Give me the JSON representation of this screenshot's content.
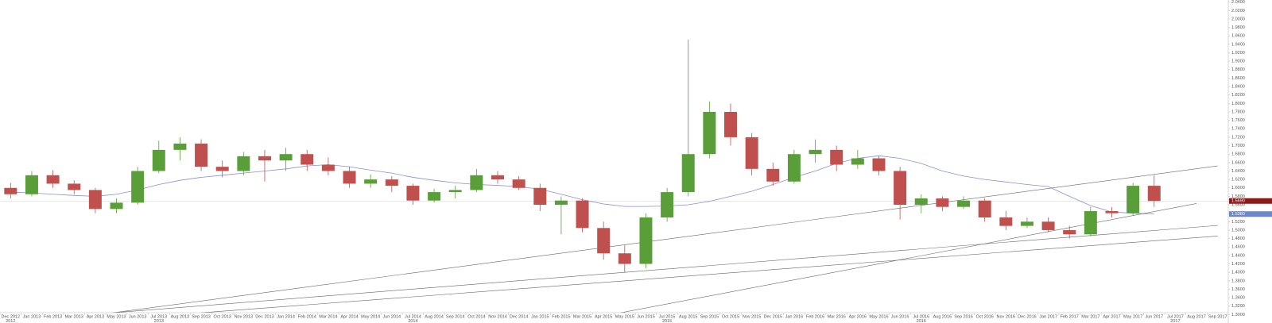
{
  "chart_data": {
    "type": "candlestick",
    "categories": [
      "Dec 2012",
      "Jan 2013",
      "Feb 2013",
      "Mar 2013",
      "Apr 2013",
      "May 2013",
      "Jun 2013",
      "Jul 2013",
      "Aug 2013",
      "Sep 2013",
      "Oct 2013",
      "Nov 2013",
      "Dec 2013",
      "Jan 2014",
      "Feb 2014",
      "Mar 2014",
      "Apr 2014",
      "May 2014",
      "Jun 2014",
      "Jul 2014",
      "Aug 2014",
      "Sep 2014",
      "Oct 2014",
      "Nov 2014",
      "Dec 2014",
      "Jan 2015",
      "Feb 2015",
      "Mar 2015",
      "Apr 2015",
      "May 2015",
      "Jun 2015",
      "Jul 2015",
      "Aug 2015",
      "Sep 2015",
      "Oct 2015",
      "Nov 2015",
      "Dec 2015",
      "Jan 2016",
      "Feb 2016",
      "Mar 2016",
      "Apr 2016",
      "May 2016",
      "Jun 2016",
      "Jul 2016",
      "Aug 2016",
      "Sep 2016",
      "Oct 2016",
      "Nov 2016",
      "Dec 2016",
      "Jan 2017",
      "Feb 2017",
      "Mar 2017",
      "Apr 2017",
      "May 2017",
      "Jun 2017",
      "Jul 2017",
      "Aug 2017",
      "Sep 2017"
    ],
    "year_labels": [
      {
        "at": "Dec 2012",
        "label": "2012"
      },
      {
        "at": "Jul 2013",
        "label": "2013"
      },
      {
        "at": "Jul 2014",
        "label": "2014"
      },
      {
        "at": "Jul 2015",
        "label": "2015"
      },
      {
        "at": "Jul 2016",
        "label": "2016"
      },
      {
        "at": "Jul 2017",
        "label": "2017"
      }
    ],
    "ohlc": [
      [
        1.6,
        1.612,
        1.575,
        1.585
      ],
      [
        1.585,
        1.64,
        1.58,
        1.63
      ],
      [
        1.63,
        1.642,
        1.6,
        1.61
      ],
      [
        1.61,
        1.618,
        1.585,
        1.595
      ],
      [
        1.595,
        1.6,
        1.54,
        1.55
      ],
      [
        1.55,
        1.575,
        1.54,
        1.565
      ],
      [
        1.565,
        1.65,
        1.56,
        1.64
      ],
      [
        1.64,
        1.712,
        1.635,
        1.69
      ],
      [
        1.69,
        1.72,
        1.665,
        1.705
      ],
      [
        1.705,
        1.715,
        1.64,
        1.65
      ],
      [
        1.65,
        1.665,
        1.625,
        1.64
      ],
      [
        1.64,
        1.685,
        1.63,
        1.675
      ],
      [
        1.675,
        1.69,
        1.615,
        1.665
      ],
      [
        1.665,
        1.695,
        1.64,
        1.68
      ],
      [
        1.68,
        1.69,
        1.64,
        1.655
      ],
      [
        1.655,
        1.672,
        1.63,
        1.64
      ],
      [
        1.64,
        1.65,
        1.6,
        1.61
      ],
      [
        1.61,
        1.632,
        1.6,
        1.62
      ],
      [
        1.62,
        1.628,
        1.59,
        1.605
      ],
      [
        1.605,
        1.61,
        1.56,
        1.57
      ],
      [
        1.57,
        1.598,
        1.565,
        1.59
      ],
      [
        1.59,
        1.605,
        1.575,
        1.595
      ],
      [
        1.595,
        1.645,
        1.59,
        1.63
      ],
      [
        1.63,
        1.64,
        1.61,
        1.62
      ],
      [
        1.62,
        1.628,
        1.595,
        1.6
      ],
      [
        1.6,
        1.61,
        1.545,
        1.56
      ],
      [
        1.56,
        1.58,
        1.49,
        1.57
      ],
      [
        1.57,
        1.575,
        1.495,
        1.505
      ],
      [
        1.505,
        1.52,
        1.43,
        1.445
      ],
      [
        1.445,
        1.465,
        1.4,
        1.42
      ],
      [
        1.42,
        1.54,
        1.41,
        1.53
      ],
      [
        1.53,
        1.6,
        1.52,
        1.59
      ],
      [
        1.59,
        1.951,
        1.58,
        1.68
      ],
      [
        1.68,
        1.805,
        1.67,
        1.78
      ],
      [
        1.78,
        1.8,
        1.7,
        1.72
      ],
      [
        1.72,
        1.73,
        1.63,
        1.645
      ],
      [
        1.645,
        1.66,
        1.605,
        1.615
      ],
      [
        1.615,
        1.69,
        1.61,
        1.68
      ],
      [
        1.68,
        1.715,
        1.66,
        1.69
      ],
      [
        1.69,
        1.7,
        1.64,
        1.655
      ],
      [
        1.655,
        1.69,
        1.645,
        1.67
      ],
      [
        1.67,
        1.675,
        1.63,
        1.64
      ],
      [
        1.64,
        1.65,
        1.525,
        1.56
      ],
      [
        1.56,
        1.585,
        1.54,
        1.575
      ],
      [
        1.575,
        1.58,
        1.545,
        1.555
      ],
      [
        1.555,
        1.58,
        1.55,
        1.57
      ],
      [
        1.57,
        1.575,
        1.52,
        1.53
      ],
      [
        1.53,
        1.545,
        1.5,
        1.51
      ],
      [
        1.51,
        1.53,
        1.505,
        1.52
      ],
      [
        1.52,
        1.53,
        1.495,
        1.5
      ],
      [
        1.5,
        1.51,
        1.48,
        1.49
      ],
      [
        1.49,
        1.555,
        1.485,
        1.545
      ],
      [
        1.545,
        1.555,
        1.53,
        1.54
      ],
      [
        1.54,
        1.612,
        1.535,
        1.605
      ],
      [
        1.605,
        1.63,
        1.555,
        1.569
      ],
      null,
      null,
      null
    ],
    "up_color": "#5a9e3a",
    "down_color": "#c0504d",
    "ma": [
      1.59,
      1.588,
      1.585,
      1.582,
      1.58,
      1.585,
      1.595,
      1.608,
      1.618,
      1.625,
      1.63,
      1.635,
      1.64,
      1.645,
      1.652,
      1.655,
      1.65,
      1.642,
      1.635,
      1.625,
      1.618,
      1.612,
      1.608,
      1.606,
      1.603,
      1.597,
      1.585,
      1.572,
      1.562,
      1.556,
      1.556,
      1.557,
      1.56,
      1.568,
      1.58,
      1.592,
      1.608,
      1.625,
      1.64,
      1.658,
      1.67,
      1.676,
      1.67,
      1.658,
      1.64,
      1.628,
      1.62,
      1.614,
      1.608,
      1.603,
      1.58,
      1.558,
      1.543,
      1.54,
      1.538,
      null,
      null,
      null
    ],
    "ma_color": "#8a8fd0",
    "trendlines": [
      {
        "x": [
          "Dec 2012",
          "Sep 2017"
        ],
        "y": [
          1.272,
          1.652
        ]
      },
      {
        "x": [
          "Dec 2012",
          "Sep 2017"
        ],
        "y": [
          1.285,
          1.511
        ]
      },
      {
        "x": [
          "Dec 2012",
          "Sep 2017"
        ],
        "y": [
          1.27,
          1.486
        ]
      },
      {
        "x": [
          "Jan 2015",
          "Aug 2017"
        ],
        "y": [
          1.268,
          1.563
        ]
      }
    ],
    "trendline_color": "#666666",
    "price_labels": [
      {
        "value": 1.569,
        "label": "1.5690",
        "color": "#8b1a1a"
      },
      {
        "value": 1.538,
        "label": "1.5380",
        "color": "#6f86c6"
      }
    ],
    "ylim": [
      1.28,
      2.045
    ],
    "yticks": [
      {
        "value": 1.3,
        "label": "1.3000"
      },
      {
        "value": 1.32,
        "label": "1.3200"
      },
      {
        "value": 1.34,
        "label": "1.3400"
      },
      {
        "value": 1.36,
        "label": "1.3600"
      },
      {
        "value": 1.38,
        "label": "1.3800"
      },
      {
        "value": 1.4,
        "label": "1.4000"
      },
      {
        "value": 1.42,
        "label": "1.4200"
      },
      {
        "value": 1.44,
        "label": "1.4400"
      },
      {
        "value": 1.46,
        "label": "1.4600"
      },
      {
        "value": 1.48,
        "label": "1.4800"
      },
      {
        "value": 1.5,
        "label": "1.5000"
      },
      {
        "value": 1.52,
        "label": "1.5200"
      },
      {
        "value": 1.54,
        "label": "1.5400"
      },
      {
        "value": 1.56,
        "label": "1.5600"
      },
      {
        "value": 1.58,
        "label": "1.5800"
      },
      {
        "value": 1.6,
        "label": "1.6000"
      },
      {
        "value": 1.62,
        "label": "1.6200"
      },
      {
        "value": 1.64,
        "label": "1.6400"
      },
      {
        "value": 1.66,
        "label": "1.6600"
      },
      {
        "value": 1.68,
        "label": "1.6800"
      },
      {
        "value": 1.7,
        "label": "1.7000"
      },
      {
        "value": 1.72,
        "label": "1.7200"
      },
      {
        "value": 1.74,
        "label": "1.7400"
      },
      {
        "value": 1.76,
        "label": "1.7600"
      },
      {
        "value": 1.78,
        "label": "1.7800"
      },
      {
        "value": 1.8,
        "label": "1.8000"
      },
      {
        "value": 1.82,
        "label": "1.8200"
      },
      {
        "value": 1.84,
        "label": "1.8400"
      },
      {
        "value": 1.86,
        "label": "1.8600"
      },
      {
        "value": 1.88,
        "label": "1.8800"
      },
      {
        "value": 1.9,
        "label": "1.9000"
      },
      {
        "value": 1.92,
        "label": "1.9200"
      },
      {
        "value": 1.94,
        "label": "1.9400"
      },
      {
        "value": 1.96,
        "label": "1.9600"
      },
      {
        "value": 1.98,
        "label": "1.9800"
      },
      {
        "value": 2.0,
        "label": "2.0000"
      },
      {
        "value": 2.02,
        "label": "2.0200"
      },
      {
        "value": 2.04,
        "label": "2.0400"
      }
    ],
    "grid": false
  }
}
